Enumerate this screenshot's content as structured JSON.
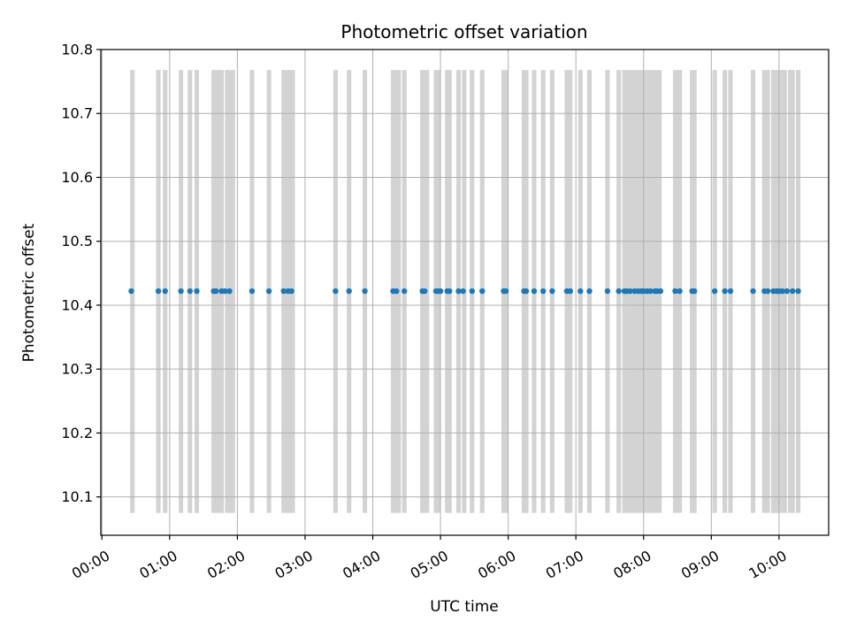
{
  "chart_data": {
    "type": "scatter",
    "title": "Photometric offset variation",
    "xlabel": "UTC time",
    "ylabel": "Photometric offset",
    "xlim": [
      "-00:01",
      "10:44"
    ],
    "ylim": [
      10.04,
      10.8
    ],
    "x_ticks": [
      "00:00",
      "01:00",
      "02:00",
      "03:00",
      "04:00",
      "05:00",
      "06:00",
      "07:00",
      "08:00",
      "09:00",
      "10:00"
    ],
    "y_ticks": [
      10.1,
      10.2,
      10.3,
      10.4,
      10.5,
      10.6,
      10.7,
      10.8
    ],
    "grid": true,
    "colors": {
      "points": "#1f77b4",
      "bands": "#d3d3d3",
      "grid": "#b0b0b0"
    },
    "band_range": [
      10.075,
      10.768
    ],
    "series": [
      {
        "y": 10.422,
        "x": [
          "00:26",
          "00:50",
          "00:56",
          "01:10",
          "01:18",
          "01:24",
          "01:39",
          "01:41",
          "01:46",
          "01:49",
          "01:53",
          "02:13",
          "02:28",
          "02:41",
          "02:45",
          "02:48",
          "03:27",
          "03:39",
          "03:53",
          "04:18",
          "04:21",
          "04:28",
          "04:44",
          "04:46",
          "04:56",
          "04:58",
          "05:00",
          "05:06",
          "05:08",
          "05:16",
          "05:20",
          "05:28",
          "05:37",
          "05:56",
          "05:58",
          "06:14",
          "06:16",
          "06:23",
          "06:31",
          "06:39",
          "06:52",
          "06:55",
          "07:04",
          "07:12",
          "07:28",
          "07:38",
          "07:43",
          "07:45",
          "07:48",
          "07:52",
          "07:55",
          "07:58",
          "08:00",
          "08:03",
          "08:06",
          "08:10",
          "08:12",
          "08:15",
          "08:28",
          "08:32",
          "08:43",
          "08:45",
          "09:03",
          "09:12",
          "09:17",
          "09:37",
          "09:47",
          "09:50",
          "09:55",
          "09:58",
          "10:00",
          "10:03",
          "10:07",
          "10:12",
          "10:17"
        ]
      }
    ],
    "bands": [
      [
        "00:25",
        "00:29"
      ],
      [
        "00:48",
        "00:52"
      ],
      [
        "00:54",
        "00:58"
      ],
      [
        "01:08",
        "01:12"
      ],
      [
        "01:16",
        "01:20"
      ],
      [
        "01:22",
        "01:26"
      ],
      [
        "01:37",
        "01:48"
      ],
      [
        "01:49",
        "01:53"
      ],
      [
        "01:53",
        "01:58"
      ],
      [
        "02:11",
        "02:15"
      ],
      [
        "02:26",
        "02:30"
      ],
      [
        "02:39",
        "02:51"
      ],
      [
        "03:25",
        "03:29"
      ],
      [
        "03:37",
        "03:41"
      ],
      [
        "03:51",
        "03:55"
      ],
      [
        "04:16",
        "04:25"
      ],
      [
        "04:26",
        "04:30"
      ],
      [
        "04:42",
        "04:50"
      ],
      [
        "04:54",
        "05:00"
      ],
      [
        "05:04",
        "05:10"
      ],
      [
        "05:14",
        "05:18"
      ],
      [
        "05:19",
        "05:23"
      ],
      [
        "05:26",
        "05:30"
      ],
      [
        "05:35",
        "05:39"
      ],
      [
        "05:54",
        "06:00"
      ],
      [
        "06:12",
        "06:18"
      ],
      [
        "06:21",
        "06:25"
      ],
      [
        "06:29",
        "06:33"
      ],
      [
        "06:37",
        "06:41"
      ],
      [
        "06:50",
        "06:57"
      ],
      [
        "07:02",
        "07:06"
      ],
      [
        "07:10",
        "07:14"
      ],
      [
        "07:26",
        "07:30"
      ],
      [
        "07:36",
        "07:40"
      ],
      [
        "07:41",
        "07:50"
      ],
      [
        "07:50",
        "08:02"
      ],
      [
        "08:02",
        "08:08"
      ],
      [
        "08:08",
        "08:16"
      ],
      [
        "08:26",
        "08:34"
      ],
      [
        "08:41",
        "08:47"
      ],
      [
        "09:01",
        "09:05"
      ],
      [
        "09:10",
        "09:14"
      ],
      [
        "09:15",
        "09:19"
      ],
      [
        "09:35",
        "09:39"
      ],
      [
        "09:45",
        "09:52"
      ],
      [
        "09:53",
        "10:01"
      ],
      [
        "10:01",
        "10:07"
      ],
      [
        "10:08",
        "10:14"
      ],
      [
        "10:15",
        "10:19"
      ]
    ]
  }
}
